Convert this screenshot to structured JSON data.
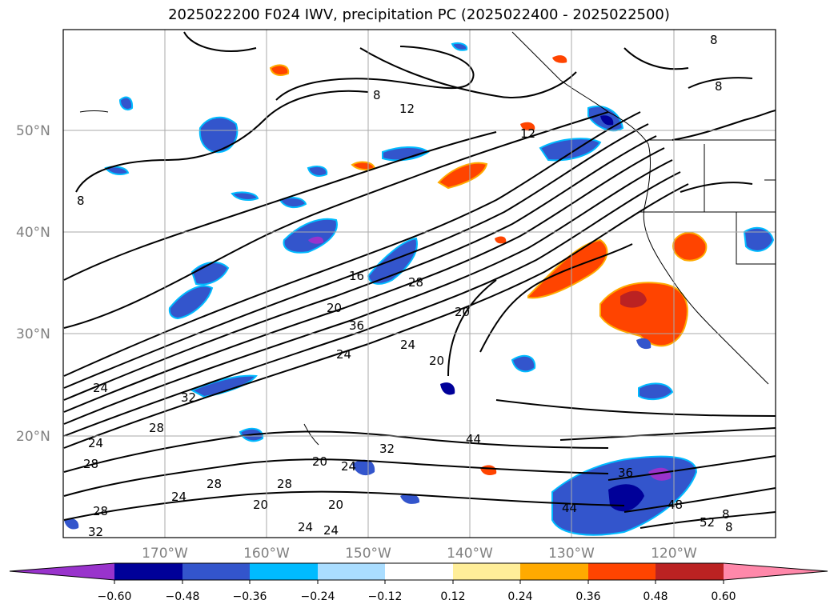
{
  "title": "2025022200 F024 IWV, precipitation PC (2025022400 - 2025022500)",
  "map": {
    "lat_labels": [
      "50°N",
      "40°N",
      "30°N",
      "20°N"
    ],
    "lon_labels": [
      "170°W",
      "160°W",
      "150°W",
      "140°W",
      "130°W",
      "120°W"
    ],
    "contour_labels": [
      "8",
      "12",
      "8",
      "8",
      "12",
      "16",
      "20",
      "36",
      "24",
      "28",
      "20",
      "24",
      "20",
      "24",
      "28",
      "32",
      "24",
      "28",
      "20",
      "24",
      "28",
      "24",
      "28",
      "32",
      "28",
      "20",
      "24",
      "20",
      "24",
      "32",
      "44",
      "36",
      "44",
      "48",
      "52",
      "8",
      "8",
      "8"
    ]
  },
  "colorbar": {
    "colors": [
      "#9933cc",
      "#000099",
      "#3355cc",
      "#00bbff",
      "#aaddff",
      "#ffffff",
      "#ffee99",
      "#ffaa00",
      "#ff4400",
      "#bb2222",
      "#ff88aa"
    ],
    "tick_labels": [
      "−0.60",
      "−0.48",
      "−0.36",
      "−0.24",
      "−0.12",
      "0.12",
      "0.24",
      "0.36",
      "0.48",
      "0.60"
    ]
  },
  "colors": {
    "positive_high": "#ff4400",
    "positive_mid": "#ffaa00",
    "negative_mid": "#3355cc",
    "negative_low": "#000099",
    "grid": "#aaaaaa",
    "contour": "#000000"
  }
}
